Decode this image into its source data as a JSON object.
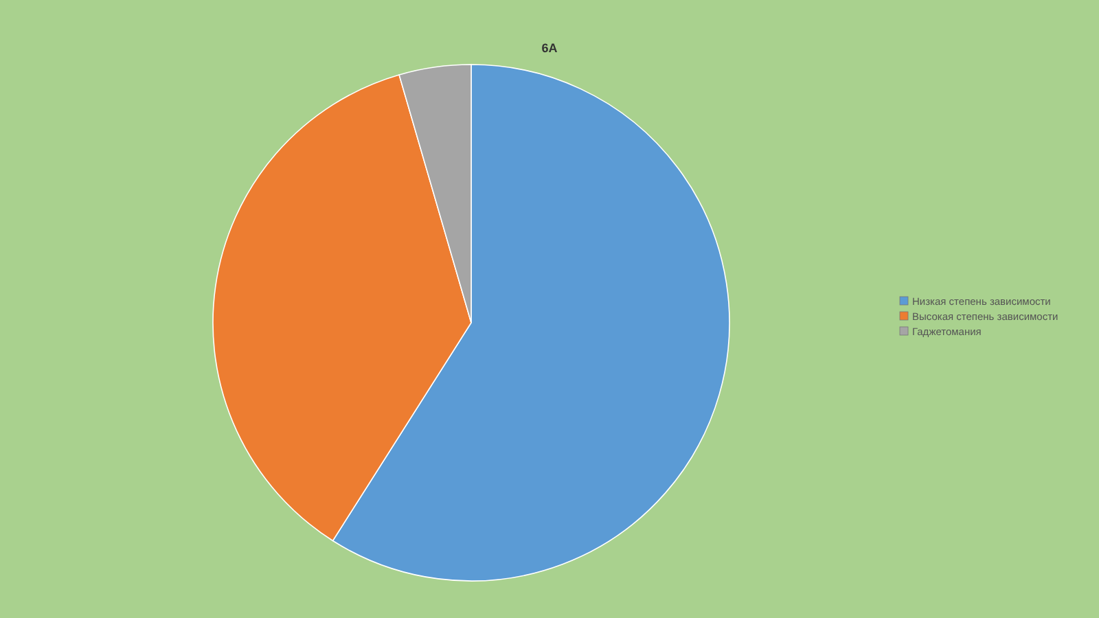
{
  "chart_data": {
    "type": "pie",
    "title": "6А",
    "categories": [
      "Низкая степень зависимости",
      "Высокая степень зависимости",
      "Гаджетомания"
    ],
    "values": [
      59,
      36.5,
      4.5
    ],
    "colors": [
      "#5b9bd5",
      "#ed7d31",
      "#a5a5a5"
    ],
    "legend": "right"
  }
}
